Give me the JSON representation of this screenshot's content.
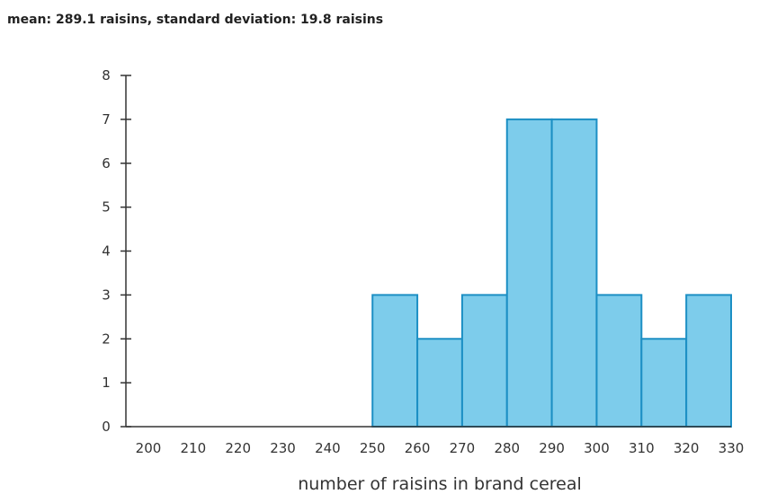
{
  "summary": "mean: 289.1 raisins, standard deviation: 19.8 raisins",
  "chart_data": {
    "type": "bar",
    "subtype": "histogram",
    "xlabel": "number of raisins in brand cereal",
    "ylabel": "",
    "bin_edges": [
      200,
      210,
      220,
      230,
      240,
      250,
      260,
      270,
      280,
      290,
      300,
      310,
      320,
      330
    ],
    "values": [
      0,
      0,
      0,
      0,
      0,
      3,
      2,
      3,
      7,
      7,
      3,
      2,
      3
    ],
    "x_ticks": [
      "200",
      "210",
      "220",
      "230",
      "240",
      "250",
      "260",
      "270",
      "280",
      "290",
      "300",
      "310",
      "320",
      "330"
    ],
    "y_ticks": [
      "0",
      "1",
      "2",
      "3",
      "4",
      "5",
      "6",
      "7",
      "8"
    ],
    "xlim": [
      200,
      330
    ],
    "ylim": [
      0,
      8
    ],
    "grid": false,
    "bar_fill": "#7dcceb",
    "bar_stroke": "#1c8fc4",
    "axis_color": "#333333"
  }
}
